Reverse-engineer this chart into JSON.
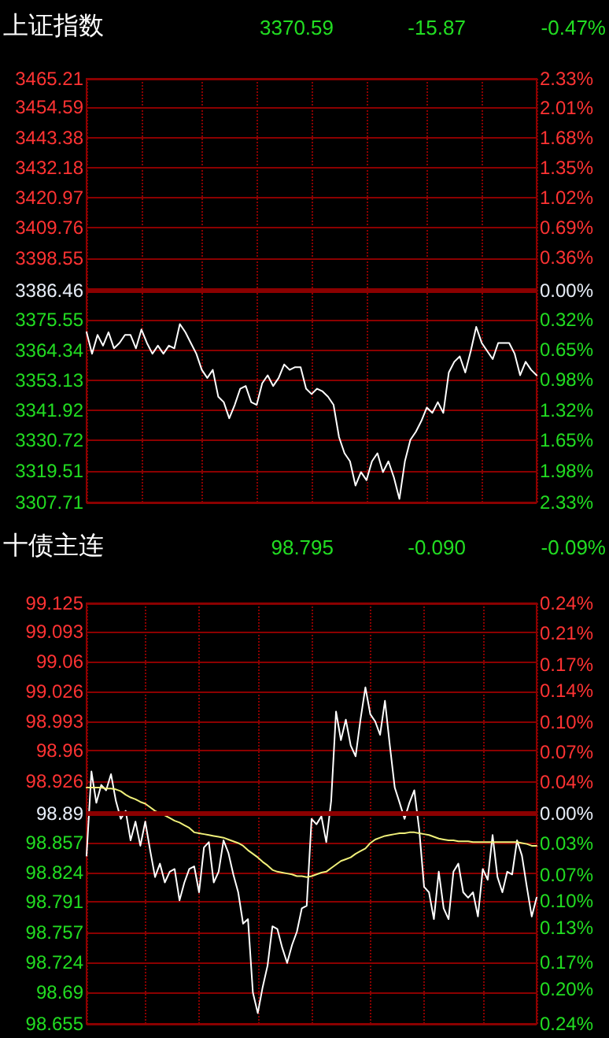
{
  "chart_data": [
    {
      "type": "line",
      "title": "上证指数",
      "annotations": [
        "3370.59",
        "-15.87",
        "-0.47%"
      ],
      "categories": [
        null,
        null,
        null,
        null,
        null,
        null,
        null,
        null,
        null,
        null,
        null,
        null,
        null,
        null,
        null,
        null,
        null,
        null,
        null,
        null,
        null,
        null,
        null,
        null,
        null,
        null,
        null,
        null,
        null,
        null,
        null,
        null,
        null,
        null,
        null,
        null,
        null,
        null,
        null,
        null,
        null,
        null,
        null,
        null,
        null,
        null,
        null,
        null,
        null,
        null,
        null,
        null,
        null,
        null,
        null,
        null,
        null,
        null,
        null,
        null,
        null,
        null,
        null,
        null,
        null,
        null,
        null,
        null,
        null,
        null,
        null,
        null,
        null,
        null,
        null,
        null,
        null,
        null,
        null,
        null,
        null,
        null,
        null
      ],
      "ylim": [
        3307.71,
        3465.21
      ],
      "yticks": [
        3307.71,
        3319.51,
        3330.72,
        3341.92,
        3353.13,
        3364.34,
        3375.55,
        3386.46,
        3398.55,
        3409.76,
        3420.97,
        3432.18,
        3443.38,
        3454.59,
        3465.21
      ],
      "y2lim": [
        -2.33,
        2.33
      ],
      "y2ticks": [
        {
          "value": -2.33,
          "label": "2.33%"
        },
        {
          "value": -1.98,
          "label": "1.98%"
        },
        {
          "value": -1.65,
          "label": "1.65%"
        },
        {
          "value": -1.32,
          "label": "1.32%"
        },
        {
          "value": -0.98,
          "label": "0.98%"
        },
        {
          "value": -0.65,
          "label": "0.65%"
        },
        {
          "value": -0.32,
          "label": "0.32%"
        },
        {
          "value": 0,
          "label": "0.00%"
        },
        {
          "value": 0.36,
          "label": "0.36%"
        },
        {
          "value": 0.69,
          "label": "0.69%"
        },
        {
          "value": 1.02,
          "label": "1.02%"
        },
        {
          "value": 1.35,
          "label": "1.35%"
        },
        {
          "value": 1.68,
          "label": "1.68%"
        },
        {
          "value": 2.01,
          "label": "2.01%"
        },
        {
          "value": 2.33,
          "label": "2.33%"
        }
      ],
      "ref_lines": [
        {
          "axis": "y",
          "value": 3386.46,
          "label": null,
          "color": "#8b0000"
        }
      ],
      "grid": true,
      "marker": "none",
      "line_style": "solid",
      "series": [
        {
          "color": "#ffffff",
          "values": [
            3371,
            3363,
            3370,
            3366,
            3371,
            3365,
            3367,
            3370,
            3370,
            3365,
            3372,
            3367,
            3363,
            3366,
            3363,
            3366,
            3365,
            3374,
            3371,
            3367,
            3363,
            3357,
            3354,
            3357,
            3347,
            3345,
            3339,
            3344,
            3350,
            3351,
            3345,
            3344,
            3352,
            3355,
            3351,
            3354,
            3359,
            3357,
            3358,
            3358,
            3350,
            3348,
            3350,
            3349,
            3347,
            3344,
            3332,
            3326,
            3323,
            3314,
            3319,
            3316,
            3323,
            3326,
            3319,
            3323,
            3317,
            3309,
            3323,
            3331,
            3334,
            3338,
            3343,
            3341,
            3345,
            3341,
            3356,
            3360,
            3362,
            3356,
            3364,
            3373,
            3367,
            3364,
            3361,
            3367,
            3367,
            3367,
            3363,
            3355,
            3360,
            3357,
            3355
          ]
        }
      ]
    },
    {
      "type": "line",
      "title": "十债主连",
      "annotations": [
        "98.795",
        "-0.090",
        "-0.09%"
      ],
      "categories": [
        null,
        null,
        null,
        null,
        null,
        null,
        null,
        null,
        null,
        null,
        null,
        null,
        null,
        null,
        null,
        null,
        null,
        null,
        null,
        null,
        null,
        null,
        null,
        null,
        null,
        null,
        null,
        null,
        null,
        null,
        null,
        null,
        null,
        null,
        null,
        null,
        null,
        null,
        null,
        null,
        null,
        null,
        null,
        null,
        null,
        null,
        null,
        null,
        null,
        null,
        null,
        null,
        null,
        null,
        null,
        null,
        null,
        null,
        null,
        null,
        null,
        null,
        null,
        null,
        null,
        null,
        null,
        null,
        null,
        null,
        null,
        null,
        null,
        null,
        null,
        null,
        null,
        null,
        null,
        null,
        null,
        null,
        null,
        null,
        null,
        null,
        null,
        null,
        null,
        null,
        null,
        null,
        null
      ],
      "ylim": [
        98.655,
        99.125
      ],
      "yticks": [
        98.655,
        98.69,
        98.724,
        98.757,
        98.791,
        98.824,
        98.857,
        98.89,
        98.926,
        98.96,
        98.993,
        99.026,
        99.06,
        99.093,
        99.125
      ],
      "y2lim": [
        -0.24,
        0.24
      ],
      "y2ticks": [
        {
          "value": -0.24,
          "label": "0.24%"
        },
        {
          "value": -0.2,
          "label": "0.20%"
        },
        {
          "value": -0.17,
          "label": "0.17%"
        },
        {
          "value": -0.13,
          "label": "0.13%"
        },
        {
          "value": -0.1,
          "label": "0.10%"
        },
        {
          "value": -0.07,
          "label": "0.07%"
        },
        {
          "value": -0.034,
          "label": "0.03%"
        },
        {
          "value": 0,
          "label": "0.00%"
        },
        {
          "value": 0.036,
          "label": "0.04%"
        },
        {
          "value": 0.07,
          "label": "0.07%"
        },
        {
          "value": 0.104,
          "label": "0.10%"
        },
        {
          "value": 0.14,
          "label": "0.14%"
        },
        {
          "value": 0.17,
          "label": "0.17%"
        },
        {
          "value": 0.206,
          "label": "0.21%"
        },
        {
          "value": 0.24,
          "label": "0.24%"
        }
      ],
      "ref_lines": [
        {
          "axis": "y",
          "value": 98.89,
          "label": null,
          "color": "#8b0000"
        }
      ],
      "grid": true,
      "marker": "none",
      "line_style": "solid",
      "series": [
        {
          "color": "#ffffff",
          "values": [
            98.843,
            98.937,
            98.902,
            98.922,
            98.916,
            98.934,
            98.904,
            98.884,
            98.893,
            98.86,
            98.881,
            98.854,
            98.881,
            98.849,
            98.819,
            98.834,
            98.813,
            98.825,
            98.828,
            98.793,
            98.813,
            98.828,
            98.831,
            98.802,
            98.852,
            98.858,
            98.813,
            98.825,
            98.86,
            98.846,
            98.822,
            98.802,
            98.767,
            98.772,
            98.69,
            98.667,
            98.696,
            98.72,
            98.764,
            98.761,
            98.74,
            98.723,
            98.743,
            98.758,
            98.784,
            98.787,
            98.884,
            98.878,
            98.887,
            98.858,
            98.904,
            99.004,
            98.972,
            98.995,
            98.966,
            98.954,
            98.995,
            99.031,
            99.001,
            98.993,
            98.978,
            99.016,
            98.966,
            98.919,
            98.902,
            98.884,
            98.902,
            98.916,
            98.872,
            98.808,
            98.802,
            98.772,
            98.825,
            98.784,
            98.772,
            98.825,
            98.834,
            98.802,
            98.796,
            98.802,
            98.775,
            98.828,
            98.816,
            98.866,
            98.819,
            98.802,
            98.825,
            98.822,
            98.86,
            98.843,
            98.808,
            98.775,
            98.796
          ]
        },
        {
          "color": "#f0f07a",
          "values": [
            98.919,
            98.919,
            98.919,
            98.919,
            98.918,
            98.918,
            98.917,
            98.915,
            98.911,
            98.908,
            98.906,
            98.903,
            98.901,
            98.897,
            98.893,
            98.89,
            98.888,
            98.885,
            98.882,
            98.88,
            98.877,
            98.874,
            98.869,
            98.868,
            98.867,
            98.866,
            98.865,
            98.864,
            98.863,
            98.861,
            98.859,
            98.857,
            98.854,
            98.849,
            98.845,
            98.841,
            98.836,
            98.832,
            98.827,
            98.825,
            98.824,
            98.823,
            98.822,
            98.82,
            98.82,
            98.819,
            98.82,
            98.822,
            98.824,
            98.825,
            98.829,
            98.833,
            98.837,
            98.839,
            98.841,
            98.845,
            98.848,
            98.851,
            98.857,
            98.861,
            98.863,
            98.865,
            98.866,
            98.867,
            98.868,
            98.868,
            98.869,
            98.869,
            98.868,
            98.867,
            98.866,
            98.864,
            98.862,
            98.861,
            98.86,
            98.86,
            98.859,
            98.859,
            98.859,
            98.858,
            98.858,
            98.858,
            98.858,
            98.858,
            98.858,
            98.858,
            98.858,
            98.858,
            98.858,
            98.857,
            98.856,
            98.854,
            98.854
          ]
        }
      ]
    }
  ]
}
